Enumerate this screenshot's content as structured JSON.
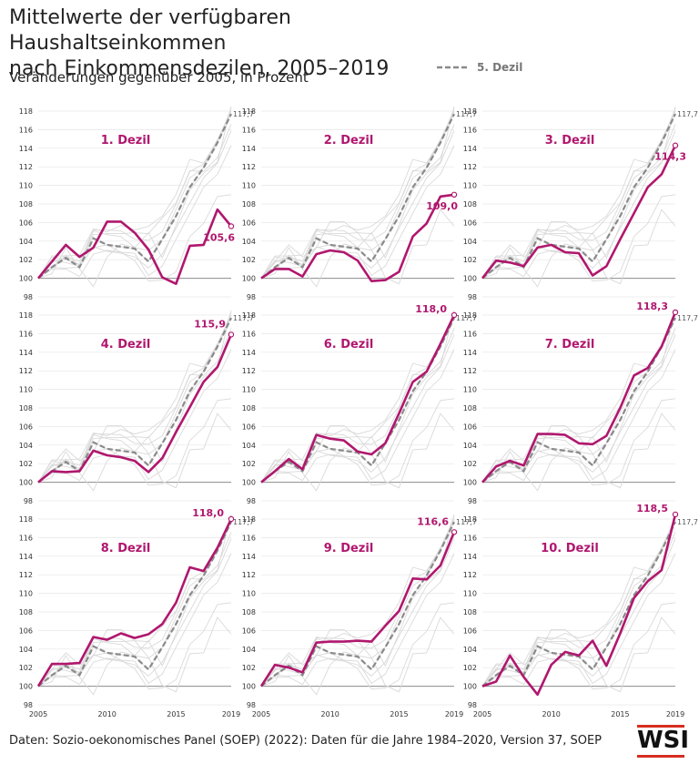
{
  "title_line1": "Mittelwerte der verfügbaren Haushaltseinkommen",
  "title_line2": "nach Einkommensdezilen, 2005–2019",
  "subtitle": "Veränderungen gegenüber 2005, in Prozent",
  "legend_label": "5. Dezil",
  "source": "Daten: Sozio-oekonomisches Panel (SOEP) (2022): Daten für die Jahre 1984–2020, Version 37, SOEP",
  "logo_text": "WSI",
  "colors": {
    "highlight": "#b0176e",
    "reference": "#8a8a8a",
    "background_lines": "#d9d9d9",
    "axis": "#999999"
  },
  "chart_data": {
    "type": "line",
    "layout": "small-multiples-3x3",
    "x": [
      2005,
      2006,
      2007,
      2008,
      2009,
      2010,
      2011,
      2012,
      2013,
      2014,
      2015,
      2016,
      2017,
      2018,
      2019
    ],
    "x_tick_labels": [
      "2005",
      "2010",
      "2015",
      "2019"
    ],
    "y_ticks": [
      "98",
      "100",
      "102",
      "104",
      "106",
      "108",
      "110",
      "112",
      "114",
      "116",
      "118"
    ],
    "ylim": [
      98,
      118
    ],
    "reference_series": {
      "name": "5. Dezil",
      "values": [
        100,
        101.2,
        102.2,
        101.2,
        104.3,
        103.6,
        103.4,
        103.2,
        101.8,
        104.2,
        106.7,
        109.8,
        111.9,
        114.6,
        117.7
      ],
      "end_label": "117,7"
    },
    "panels": [
      {
        "label": "1. Dezil",
        "end_label": "105,6",
        "values": [
          100,
          101.8,
          103.6,
          102.3,
          103.3,
          106.1,
          106.1,
          104.9,
          103.1,
          100.1,
          99.4,
          103.5,
          103.6,
          107.4,
          105.6
        ]
      },
      {
        "label": "2. Dezil",
        "end_label": "109,0",
        "values": [
          100,
          101.0,
          101.0,
          100.2,
          102.6,
          103.0,
          102.8,
          101.9,
          99.7,
          99.8,
          100.7,
          104.5,
          105.9,
          108.8,
          109.0
        ]
      },
      {
        "label": "3. Dezil",
        "end_label": "114,3",
        "values": [
          100,
          101.9,
          101.7,
          101.3,
          103.3,
          103.6,
          102.8,
          102.7,
          100.3,
          101.3,
          104.2,
          107.0,
          109.8,
          111.2,
          114.3
        ]
      },
      {
        "label": "4. Dezil",
        "end_label": "115,9",
        "values": [
          100,
          101.2,
          101.1,
          101.2,
          103.4,
          102.9,
          102.7,
          102.3,
          101.1,
          102.6,
          105.4,
          108.1,
          110.8,
          112.4,
          115.9
        ]
      },
      {
        "label": "6. Dezil",
        "end_label": "118,0",
        "values": [
          100,
          101.2,
          102.5,
          101.4,
          105.1,
          104.7,
          104.5,
          103.3,
          103.0,
          104.2,
          107.4,
          110.8,
          111.9,
          114.9,
          118.0
        ]
      },
      {
        "label": "7. Dezil",
        "end_label": "118,3",
        "values": [
          100,
          101.7,
          102.3,
          101.8,
          105.2,
          105.2,
          105.1,
          104.2,
          104.1,
          105.0,
          108.0,
          111.5,
          112.3,
          114.6,
          118.3
        ]
      },
      {
        "label": "8. Dezil",
        "end_label": "118,0",
        "values": [
          100,
          102.4,
          102.4,
          102.5,
          105.3,
          105.0,
          105.7,
          105.2,
          105.6,
          106.7,
          109.0,
          112.8,
          112.4,
          114.9,
          118.0
        ]
      },
      {
        "label": "9. Dezil",
        "end_label": "116,6",
        "values": [
          100,
          102.3,
          102.0,
          101.5,
          104.7,
          104.8,
          104.8,
          104.9,
          104.8,
          106.5,
          108.1,
          111.6,
          111.5,
          113.0,
          116.6
        ]
      },
      {
        "label": "10. Dezil",
        "end_label": "118,5",
        "values": [
          100,
          100.5,
          103.3,
          101.0,
          99.1,
          102.3,
          103.7,
          103.3,
          104.9,
          102.2,
          105.7,
          109.5,
          111.3,
          112.5,
          118.5
        ]
      }
    ]
  }
}
